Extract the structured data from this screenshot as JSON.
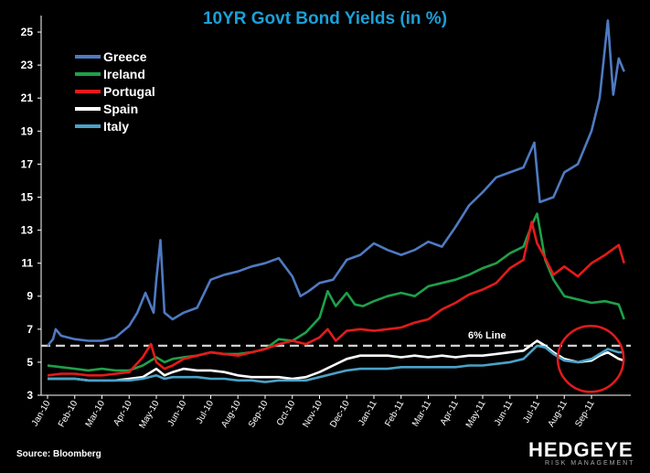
{
  "chart_data": {
    "type": "line",
    "title": "10YR Govt Bond Yields (in %)",
    "xlabel": "",
    "ylabel": "",
    "ylim": [
      3,
      26
    ],
    "y_ticks": [
      "3",
      "5",
      "7",
      "9",
      "11",
      "13",
      "15",
      "17",
      "19",
      "21",
      "23",
      "25"
    ],
    "x_ticks": [
      "Jan-10",
      "Feb-10",
      "Mar-10",
      "Apr-10",
      "May-10",
      "Jun-10",
      "Jul-10",
      "Aug-10",
      "Sep-10",
      "Oct-10",
      "Nov-10",
      "Dec-10",
      "Jan-11",
      "Feb-11",
      "Mar-11",
      "Apr-11",
      "May-11",
      "Jun-11",
      "Jul-11",
      "Aug-11",
      "Sep-11"
    ],
    "legend_position": "top-left",
    "reference_line": {
      "value": 6,
      "label": "6% Line"
    },
    "highlight_circle": {
      "from": "Aug-11",
      "to": "Sep-11",
      "y_center": 5.2
    },
    "series": [
      {
        "name": "Greece",
        "color": "#4f7ac2",
        "points": [
          [
            0,
            6.0
          ],
          [
            0.2,
            6.4
          ],
          [
            0.3,
            7.0
          ],
          [
            0.5,
            6.6
          ],
          [
            1,
            6.4
          ],
          [
            1.5,
            6.3
          ],
          [
            2,
            6.3
          ],
          [
            2.5,
            6.5
          ],
          [
            3,
            7.2
          ],
          [
            3.3,
            8.0
          ],
          [
            3.6,
            9.2
          ],
          [
            3.9,
            8.0
          ],
          [
            4.0,
            10.0
          ],
          [
            4.15,
            12.4
          ],
          [
            4.3,
            8.0
          ],
          [
            4.6,
            7.6
          ],
          [
            5,
            8.0
          ],
          [
            5.5,
            8.3
          ],
          [
            6,
            10.0
          ],
          [
            6.5,
            10.3
          ],
          [
            7,
            10.5
          ],
          [
            7.5,
            10.8
          ],
          [
            8,
            11.0
          ],
          [
            8.5,
            11.3
          ],
          [
            9,
            10.2
          ],
          [
            9.3,
            9.0
          ],
          [
            9.6,
            9.3
          ],
          [
            10,
            9.8
          ],
          [
            10.5,
            10.0
          ],
          [
            11,
            11.2
          ],
          [
            11.5,
            11.5
          ],
          [
            12,
            12.2
          ],
          [
            12.5,
            11.8
          ],
          [
            13,
            11.5
          ],
          [
            13.5,
            11.8
          ],
          [
            14,
            12.3
          ],
          [
            14.5,
            12.0
          ],
          [
            15,
            13.2
          ],
          [
            15.5,
            14.5
          ],
          [
            16,
            15.3
          ],
          [
            16.5,
            16.2
          ],
          [
            17,
            16.5
          ],
          [
            17.5,
            16.8
          ],
          [
            17.9,
            18.3
          ],
          [
            18.1,
            14.7
          ],
          [
            18.6,
            15.0
          ],
          [
            19,
            16.5
          ],
          [
            19.5,
            17.0
          ],
          [
            20,
            19.0
          ],
          [
            20.3,
            21.0
          ],
          [
            20.6,
            25.7
          ],
          [
            20.8,
            21.2
          ],
          [
            21.0,
            23.4
          ],
          [
            21.2,
            22.6
          ]
        ]
      },
      {
        "name": "Ireland",
        "color": "#1fa04a",
        "points": [
          [
            0,
            4.8
          ],
          [
            0.5,
            4.7
          ],
          [
            1,
            4.6
          ],
          [
            1.5,
            4.5
          ],
          [
            2,
            4.6
          ],
          [
            2.5,
            4.5
          ],
          [
            3,
            4.5
          ],
          [
            3.5,
            4.8
          ],
          [
            4,
            5.3
          ],
          [
            4.3,
            5.0
          ],
          [
            4.6,
            5.2
          ],
          [
            5,
            5.3
          ],
          [
            5.5,
            5.4
          ],
          [
            6,
            5.6
          ],
          [
            6.5,
            5.5
          ],
          [
            7,
            5.5
          ],
          [
            7.5,
            5.6
          ],
          [
            8,
            5.8
          ],
          [
            8.5,
            6.4
          ],
          [
            9,
            6.3
          ],
          [
            9.5,
            6.8
          ],
          [
            10,
            7.7
          ],
          [
            10.3,
            9.3
          ],
          [
            10.6,
            8.4
          ],
          [
            11,
            9.2
          ],
          [
            11.3,
            8.5
          ],
          [
            11.6,
            8.4
          ],
          [
            12,
            8.7
          ],
          [
            12.5,
            9.0
          ],
          [
            13,
            9.2
          ],
          [
            13.5,
            9.0
          ],
          [
            14,
            9.6
          ],
          [
            14.5,
            9.8
          ],
          [
            15,
            10.0
          ],
          [
            15.5,
            10.3
          ],
          [
            16,
            10.7
          ],
          [
            16.5,
            11.0
          ],
          [
            17,
            11.6
          ],
          [
            17.5,
            12.0
          ],
          [
            17.8,
            13.3
          ],
          [
            18.0,
            14.0
          ],
          [
            18.3,
            11.2
          ],
          [
            18.6,
            10.0
          ],
          [
            19,
            9.0
          ],
          [
            19.5,
            8.8
          ],
          [
            20,
            8.6
          ],
          [
            20.5,
            8.7
          ],
          [
            21.0,
            8.5
          ],
          [
            21.2,
            7.6
          ]
        ]
      },
      {
        "name": "Portugal",
        "color": "#e51a1a",
        "points": [
          [
            0,
            4.2
          ],
          [
            0.5,
            4.3
          ],
          [
            1,
            4.3
          ],
          [
            1.5,
            4.2
          ],
          [
            2,
            4.2
          ],
          [
            2.5,
            4.3
          ],
          [
            3,
            4.4
          ],
          [
            3.5,
            5.3
          ],
          [
            3.8,
            6.1
          ],
          [
            4,
            5.0
          ],
          [
            4.3,
            4.6
          ],
          [
            4.6,
            4.8
          ],
          [
            5,
            5.2
          ],
          [
            5.5,
            5.4
          ],
          [
            6,
            5.6
          ],
          [
            6.5,
            5.5
          ],
          [
            7,
            5.4
          ],
          [
            7.5,
            5.6
          ],
          [
            8,
            5.8
          ],
          [
            8.5,
            6.1
          ],
          [
            9,
            6.3
          ],
          [
            9.5,
            6.1
          ],
          [
            10,
            6.5
          ],
          [
            10.3,
            7.0
          ],
          [
            10.6,
            6.3
          ],
          [
            11,
            6.9
          ],
          [
            11.5,
            7.0
          ],
          [
            12,
            6.9
          ],
          [
            12.5,
            7.0
          ],
          [
            13,
            7.1
          ],
          [
            13.5,
            7.4
          ],
          [
            14,
            7.6
          ],
          [
            14.5,
            8.2
          ],
          [
            15,
            8.6
          ],
          [
            15.5,
            9.1
          ],
          [
            16,
            9.4
          ],
          [
            16.5,
            9.8
          ],
          [
            17,
            10.7
          ],
          [
            17.5,
            11.2
          ],
          [
            17.8,
            13.5
          ],
          [
            18.0,
            12.2
          ],
          [
            18.3,
            11.3
          ],
          [
            18.6,
            10.3
          ],
          [
            19,
            10.8
          ],
          [
            19.5,
            10.2
          ],
          [
            20,
            11.0
          ],
          [
            20.5,
            11.5
          ],
          [
            21.0,
            12.1
          ],
          [
            21.2,
            11.0
          ]
        ]
      },
      {
        "name": "Spain",
        "color": "#ffffff",
        "points": [
          [
            0,
            4.0
          ],
          [
            0.5,
            4.0
          ],
          [
            1,
            4.0
          ],
          [
            1.5,
            3.9
          ],
          [
            2,
            3.9
          ],
          [
            2.5,
            3.9
          ],
          [
            3,
            4.0
          ],
          [
            3.5,
            4.1
          ],
          [
            4,
            4.6
          ],
          [
            4.3,
            4.2
          ],
          [
            4.6,
            4.4
          ],
          [
            5,
            4.6
          ],
          [
            5.5,
            4.5
          ],
          [
            6,
            4.5
          ],
          [
            6.5,
            4.4
          ],
          [
            7,
            4.2
          ],
          [
            7.5,
            4.1
          ],
          [
            8,
            4.1
          ],
          [
            8.5,
            4.1
          ],
          [
            9,
            4.0
          ],
          [
            9.5,
            4.1
          ],
          [
            10,
            4.4
          ],
          [
            10.5,
            4.8
          ],
          [
            11,
            5.2
          ],
          [
            11.5,
            5.4
          ],
          [
            12,
            5.4
          ],
          [
            12.5,
            5.4
          ],
          [
            13,
            5.3
          ],
          [
            13.5,
            5.4
          ],
          [
            14,
            5.3
          ],
          [
            14.5,
            5.4
          ],
          [
            15,
            5.3
          ],
          [
            15.5,
            5.4
          ],
          [
            16,
            5.4
          ],
          [
            16.5,
            5.5
          ],
          [
            17,
            5.6
          ],
          [
            17.5,
            5.7
          ],
          [
            18.0,
            6.3
          ],
          [
            18.3,
            6.0
          ],
          [
            18.6,
            5.6
          ],
          [
            19,
            5.2
          ],
          [
            19.5,
            5.0
          ],
          [
            20,
            5.1
          ],
          [
            20.3,
            5.4
          ],
          [
            20.6,
            5.6
          ],
          [
            21.0,
            5.2
          ],
          [
            21.2,
            5.1
          ]
        ]
      },
      {
        "name": "Italy",
        "color": "#4aa2c8",
        "points": [
          [
            0,
            4.0
          ],
          [
            0.5,
            4.0
          ],
          [
            1,
            4.0
          ],
          [
            1.5,
            3.9
          ],
          [
            2,
            3.9
          ],
          [
            2.5,
            3.9
          ],
          [
            3,
            3.9
          ],
          [
            3.5,
            4.0
          ],
          [
            4,
            4.2
          ],
          [
            4.3,
            4.0
          ],
          [
            4.6,
            4.1
          ],
          [
            5,
            4.1
          ],
          [
            5.5,
            4.1
          ],
          [
            6,
            4.0
          ],
          [
            6.5,
            4.0
          ],
          [
            7,
            3.9
          ],
          [
            7.5,
            3.9
          ],
          [
            8,
            3.8
          ],
          [
            8.5,
            3.9
          ],
          [
            9,
            3.9
          ],
          [
            9.5,
            3.9
          ],
          [
            10,
            4.1
          ],
          [
            10.5,
            4.3
          ],
          [
            11,
            4.5
          ],
          [
            11.5,
            4.6
          ],
          [
            12,
            4.6
          ],
          [
            12.5,
            4.6
          ],
          [
            13,
            4.7
          ],
          [
            13.5,
            4.7
          ],
          [
            14,
            4.7
          ],
          [
            14.5,
            4.7
          ],
          [
            15,
            4.7
          ],
          [
            15.5,
            4.8
          ],
          [
            16,
            4.8
          ],
          [
            16.5,
            4.9
          ],
          [
            17,
            5.0
          ],
          [
            17.5,
            5.2
          ],
          [
            18.0,
            6.0
          ],
          [
            18.3,
            5.9
          ],
          [
            18.6,
            5.5
          ],
          [
            19,
            5.1
          ],
          [
            19.5,
            5.0
          ],
          [
            20,
            5.2
          ],
          [
            20.3,
            5.5
          ],
          [
            20.6,
            5.8
          ],
          [
            21.0,
            5.6
          ],
          [
            21.2,
            5.6
          ]
        ]
      }
    ]
  },
  "footer": {
    "source": "Source: Bloomberg",
    "brand": "HEDGEYE",
    "brand_sub": "RISK MANAGEMENT"
  }
}
